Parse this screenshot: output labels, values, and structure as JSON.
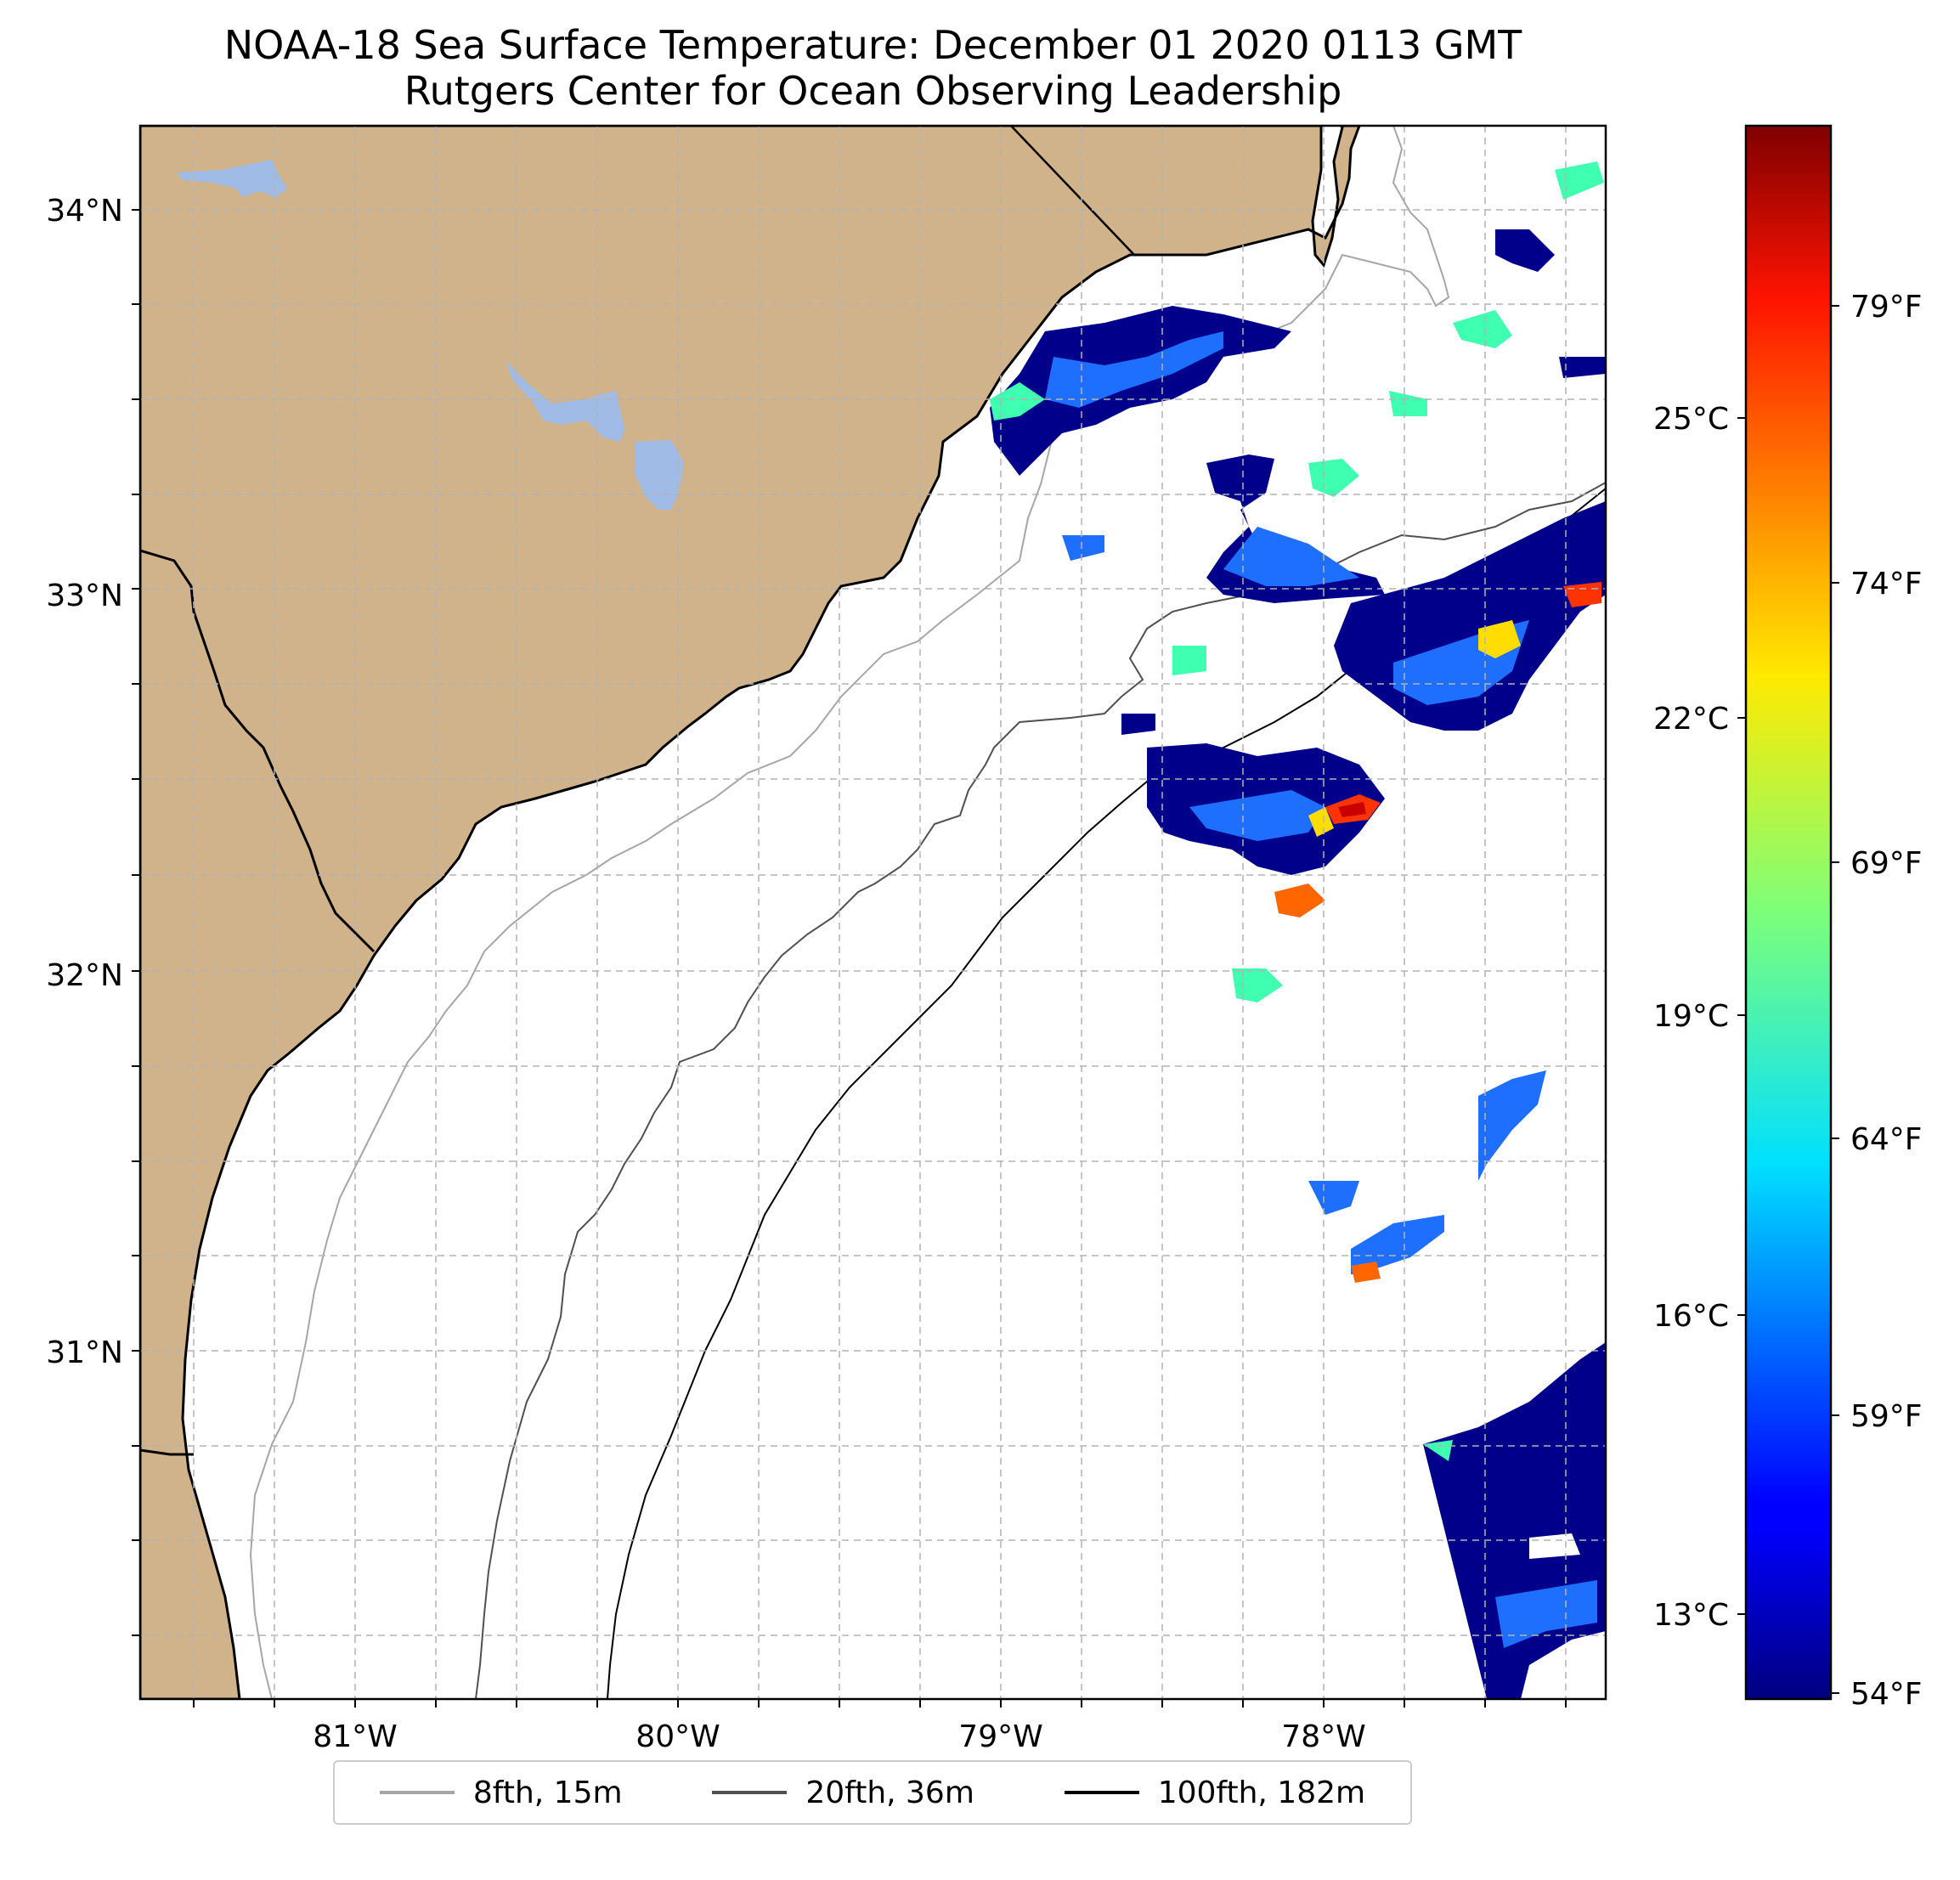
{
  "title": {
    "line1": "NOAA-18 Sea Surface Temperature: December 01 2020 0113 GMT",
    "line2": "Rutgers Center for Ocean Observing Leadership"
  },
  "map": {
    "land_color": "#d0b38a",
    "water_color": "#a0bce6",
    "lat_labels": [
      "34°N",
      "33°N",
      "32°N",
      "31°N"
    ],
    "lon_labels": [
      "81°W",
      "80°W",
      "79°W",
      "78°W"
    ]
  },
  "colorbar": {
    "colormap": "jet",
    "celsius_labels": [
      "25°C",
      "22°C",
      "19°C",
      "16°C",
      "13°C"
    ],
    "fahrenheit_labels": [
      "79°F",
      "74°F",
      "69°F",
      "64°F",
      "59°F",
      "54°F"
    ]
  },
  "legend": {
    "items": [
      {
        "label": "8fth, 15m",
        "color": "#a6a6a6"
      },
      {
        "label": "20fth, 36m",
        "color": "#505050"
      },
      {
        "label": "100fth, 182m",
        "color": "#000000"
      }
    ]
  }
}
